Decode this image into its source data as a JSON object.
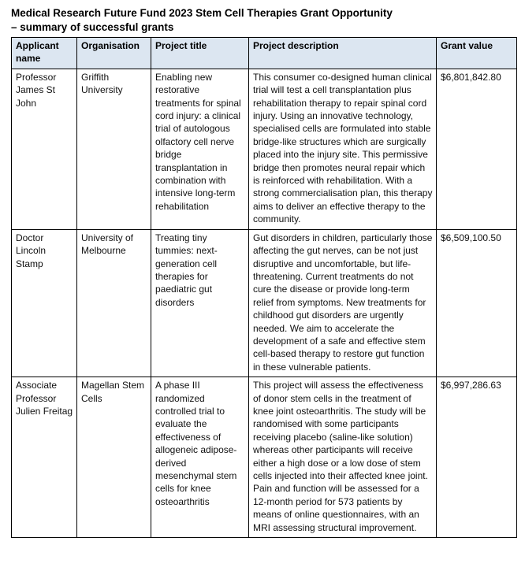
{
  "document": {
    "title_line1": "Medical Research Future Fund 2023 Stem Cell Therapies Grant Opportunity",
    "title_line2": "– summary of successful grants"
  },
  "table": {
    "header_bg": "#dce6f1",
    "border_color": "#000000",
    "columns": [
      "Applicant name",
      "Organisation",
      "Project title",
      "Project description",
      "Grant value"
    ],
    "rows": [
      {
        "applicant": "Professor James St John",
        "organisation": "Griffith University",
        "project_title": "Enabling new restorative treatments for spinal cord injury: a clinical trial of autologous olfactory cell nerve bridge transplantation in combination with intensive long-term rehabilitation",
        "project_description": "This consumer co-designed human clinical trial will test a cell transplantation plus rehabilitation therapy to repair spinal cord injury. Using an innovative technology, specialised cells are formulated into stable bridge-like structures which are surgically placed into the injury site. This permissive bridge then promotes neural repair which is reinforced with rehabilitation. With a strong commercialisation plan, this therapy aims to deliver an effective therapy to the community.",
        "grant_value": "$6,801,842.80"
      },
      {
        "applicant": "Doctor Lincoln Stamp",
        "organisation": "University of Melbourne",
        "project_title": "Treating tiny tummies: next-generation cell therapies for paediatric gut disorders",
        "project_description": "Gut disorders in children, particularly those affecting the gut nerves, can be not just disruptive and uncomfortable, but life-threatening. Current treatments do not cure the disease or provide long-term relief from symptoms. New treatments for childhood gut disorders are urgently needed. We aim to accelerate the development of a safe and effective stem cell-based therapy to restore gut function in these vulnerable patients.",
        "grant_value": "$6,509,100.50"
      },
      {
        "applicant": "Associate Professor Julien Freitag",
        "organisation": "Magellan Stem Cells",
        "project_title": "A phase III randomized controlled trial to evaluate the effectiveness of allogeneic adipose-derived mesenchymal stem cells for knee osteoarthritis",
        "project_description": "This project will assess the effectiveness of donor stem cells in the treatment of knee joint osteoarthritis. The study will be randomised with some participants receiving placebo (saline-like solution) whereas other participants will receive either a high dose or a low dose of stem cells injected into their affected knee joint. Pain and function will be assessed for a 12-month period for 573 patients by means of online questionnaires, with an MRI assessing structural improvement.",
        "grant_value": "$6,997,286.63"
      }
    ]
  }
}
